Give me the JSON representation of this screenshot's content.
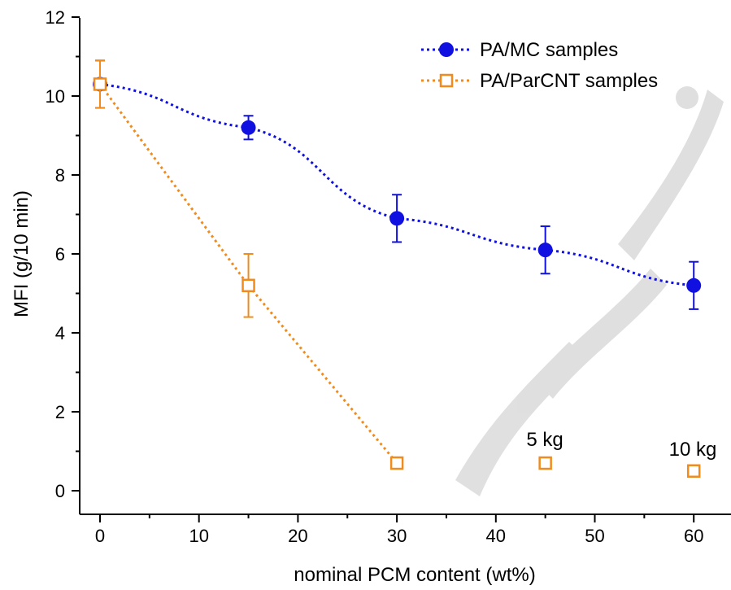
{
  "chart_data": {
    "type": "scatter",
    "xlabel": "nominal PCM content (wt%)",
    "ylabel": "MFI (g/10 min)",
    "xlim": [
      -2,
      64
    ],
    "ylim": [
      -0.6,
      12
    ],
    "xticks": [
      0,
      10,
      20,
      30,
      40,
      50,
      60
    ],
    "yticks": [
      0,
      2,
      4,
      6,
      8,
      10,
      12
    ],
    "x_tick_labels": [
      "0",
      "10",
      "20",
      "30",
      "40",
      "50",
      "60"
    ],
    "y_tick_labels": [
      "0",
      "2",
      "4",
      "6",
      "8",
      "10",
      "12"
    ],
    "grid": false,
    "legend_position": "top-right",
    "series": [
      {
        "name": "PA/MC samples",
        "color": "#1010e0",
        "marker": "filled-circle",
        "line": "dotted",
        "points": [
          {
            "x": 0,
            "y": 10.3,
            "err": 0.6
          },
          {
            "x": 15,
            "y": 9.2,
            "err": 0.3
          },
          {
            "x": 30,
            "y": 6.9,
            "err": 0.6
          },
          {
            "x": 45,
            "y": 6.1,
            "err": 0.6
          },
          {
            "x": 60,
            "y": 5.2,
            "err": 0.6
          }
        ]
      },
      {
        "name": "PA/ParCNT samples",
        "color": "#f08c1e",
        "marker": "open-square",
        "line": "dotted",
        "line_points": 3,
        "points": [
          {
            "x": 0,
            "y": 10.3,
            "err": 0.6
          },
          {
            "x": 15,
            "y": 5.2,
            "err": 0.8
          },
          {
            "x": 30,
            "y": 0.7,
            "err": 0.1
          },
          {
            "x": 45,
            "y": 0.7,
            "err": 0.1
          },
          {
            "x": 60,
            "y": 0.5,
            "err": 0.1
          }
        ]
      }
    ],
    "annotations": [
      {
        "text": "5 kg",
        "x": 45,
        "y": 1.2
      },
      {
        "text": "10 kg",
        "x": 60,
        "y": 1.0
      }
    ]
  }
}
